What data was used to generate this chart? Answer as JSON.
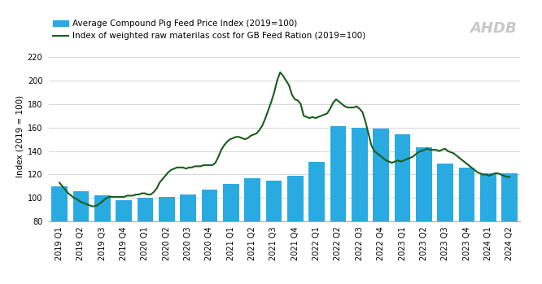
{
  "quarters": [
    "2019 Q1",
    "2019 Q2",
    "2019 Q3",
    "2019 Q4",
    "2020 Q1",
    "2020 Q2",
    "2020 Q3",
    "2020 Q4",
    "2021 Q1",
    "2021 Q2",
    "2021 Q3",
    "2021 Q4",
    "2022 Q1",
    "2022 Q2",
    "2022 Q3",
    "2022 Q4",
    "2023 Q1",
    "2023 Q2",
    "2023 Q3",
    "2023 Q4",
    "2024 Q1",
    "2024 Q2"
  ],
  "bar_values": [
    110,
    106,
    102,
    98,
    100,
    101,
    103,
    107,
    112,
    117,
    115,
    119,
    131,
    161,
    160,
    159,
    154,
    143,
    129,
    126,
    121,
    121
  ],
  "line_values": [
    113,
    110,
    107,
    104,
    102,
    100,
    99,
    97,
    96,
    95,
    94,
    93,
    93,
    94,
    96,
    98,
    100,
    101,
    101,
    101,
    101,
    101,
    101,
    102,
    102,
    102,
    103,
    103,
    104,
    104,
    103,
    103,
    105,
    108,
    113,
    116,
    119,
    122,
    124,
    125,
    126,
    126,
    126,
    125,
    126,
    126,
    127,
    127,
    127,
    128,
    128,
    128,
    128,
    130,
    135,
    141,
    145,
    148,
    150,
    151,
    152,
    152,
    151,
    150,
    151,
    153,
    154,
    155,
    158,
    162,
    168,
    175,
    182,
    190,
    200,
    207,
    204,
    200,
    196,
    188,
    184,
    183,
    180,
    170,
    169,
    168,
    169,
    168,
    169,
    170,
    171,
    172,
    176,
    181,
    184,
    182,
    180,
    178,
    177,
    177,
    177,
    178,
    176,
    173,
    165,
    155,
    145,
    140,
    138,
    136,
    134,
    132,
    131,
    130,
    131,
    132,
    131,
    132,
    133,
    134,
    135,
    137,
    139,
    140,
    141,
    142,
    141,
    141,
    141,
    140,
    141,
    142,
    140,
    139,
    138,
    136,
    134,
    132,
    130,
    128,
    126,
    124,
    122,
    121,
    120,
    120,
    119,
    120,
    121,
    121,
    120,
    119,
    118,
    118
  ],
  "bar_color": "#29ABE2",
  "line_color": "#1a5c1a",
  "background_color": "#ffffff",
  "ylabel": "Index (2019 = 100)",
  "ylim": [
    80,
    225
  ],
  "yticks": [
    80,
    100,
    120,
    140,
    160,
    180,
    200,
    220
  ],
  "legend_bar": "Average Compound Pig Feed Price Index (2019=100)",
  "legend_line": "Index of weighted raw materilas cost for GB Feed Ration (2019=100)",
  "ahdb_text": "AHDB",
  "legend_fontsize": 7.5,
  "axis_fontsize": 7.5,
  "tick_fontsize": 7.0
}
